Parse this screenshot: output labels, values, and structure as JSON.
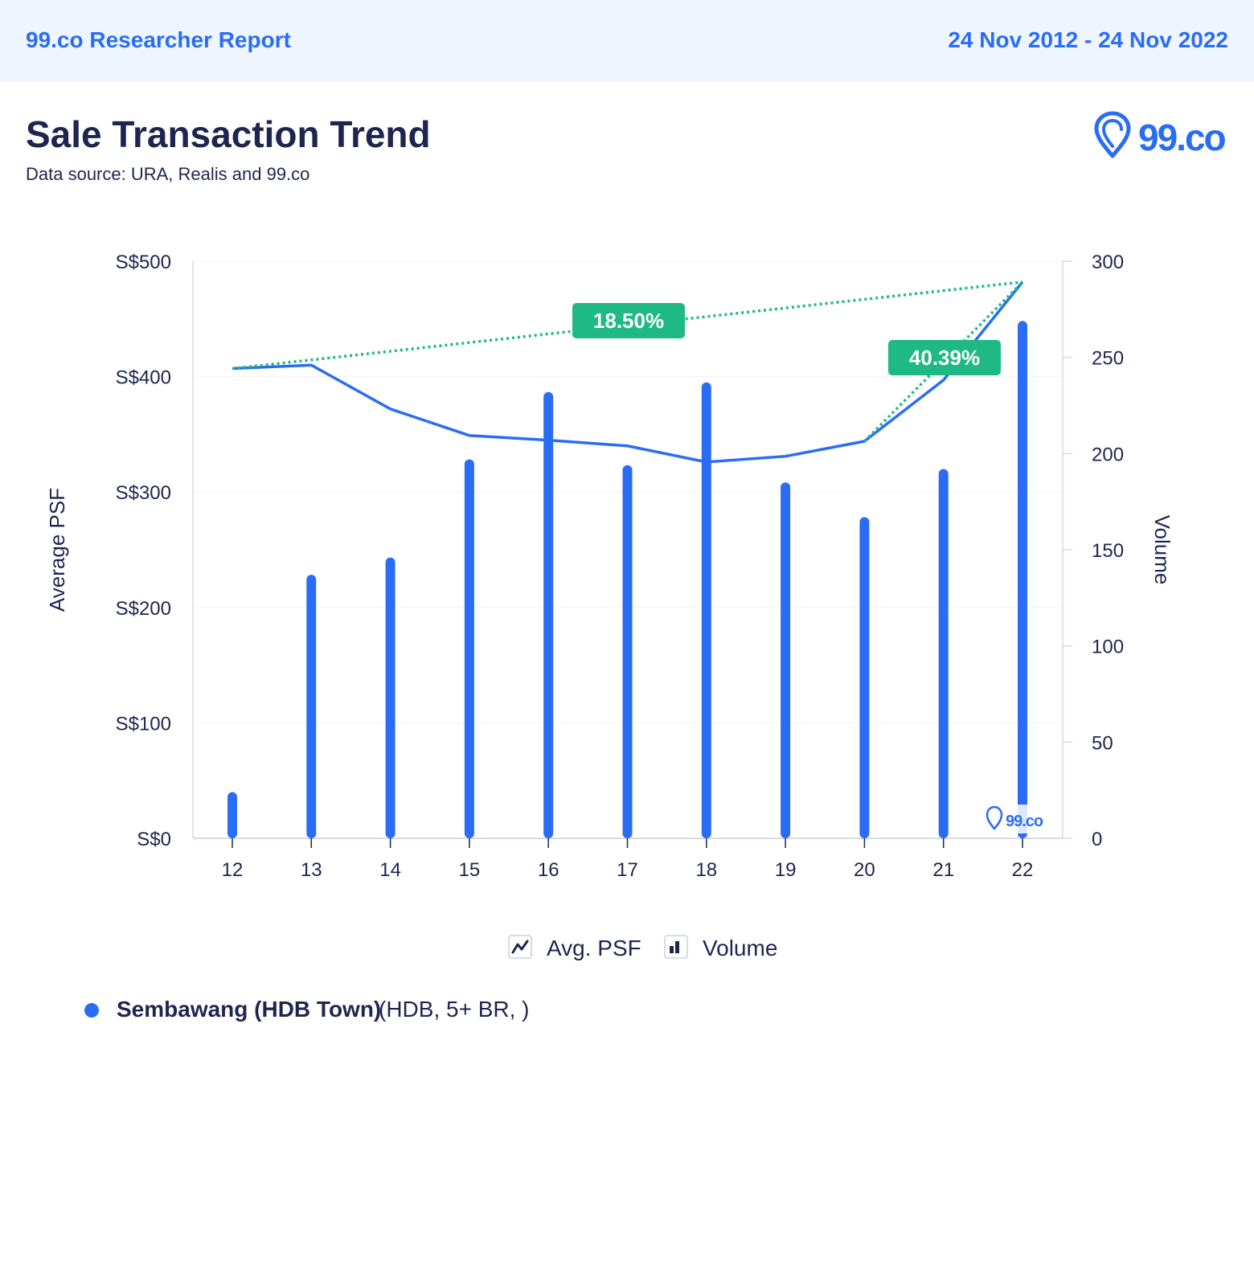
{
  "header": {
    "brand": "99.co Researcher Report",
    "date_range": "24 Nov 2012 - 24 Nov 2022"
  },
  "title": "Sale Transaction Trend",
  "subtitle": "Data source: URA, Realis and 99.co",
  "logo": {
    "text": "99.co",
    "icon": "location-pin-icon"
  },
  "watermark": {
    "text": "99.co",
    "icon": "location-pin-icon"
  },
  "colors": {
    "accent": "#2a6df4",
    "badge": "#1fb985",
    "text": "#1e2650",
    "axis": "#d7dbe6"
  },
  "legend": {
    "psf_label": "Avg. PSF",
    "volume_label": "Volume",
    "psf_icon": "line-chart-icon",
    "volume_icon": "bar-chart-icon"
  },
  "series_info": {
    "name": "Sembawang (HDB Town)",
    "meta": "(HDB, 5+ BR, )"
  },
  "chart_data": {
    "type": "bar",
    "categories": [
      "12",
      "13",
      "14",
      "15",
      "16",
      "17",
      "18",
      "19",
      "20",
      "21",
      "22"
    ],
    "ylabel": "Average PSF",
    "y2label": "Volume",
    "ylim": [
      0,
      500
    ],
    "y2lim": [
      0,
      300
    ],
    "y_ticks": [
      "S$0",
      "S$100",
      "S$200",
      "S$300",
      "S$400",
      "S$500"
    ],
    "y2_ticks": [
      "0",
      "50",
      "100",
      "150",
      "200",
      "250",
      "300"
    ],
    "series": [
      {
        "values": [
          24,
          137,
          146,
          197,
          232,
          194,
          237,
          185,
          167,
          192,
          269
        ],
        "type": "bar"
      },
      {
        "values": [
          407,
          410,
          372,
          349,
          345,
          340,
          326,
          331,
          344,
          397,
          482
        ],
        "type": "line"
      }
    ],
    "annotations": [
      {
        "label": "18.50%",
        "from": "12",
        "to": "22"
      },
      {
        "label": "40.39%",
        "from": "20",
        "to": "22"
      }
    ]
  }
}
